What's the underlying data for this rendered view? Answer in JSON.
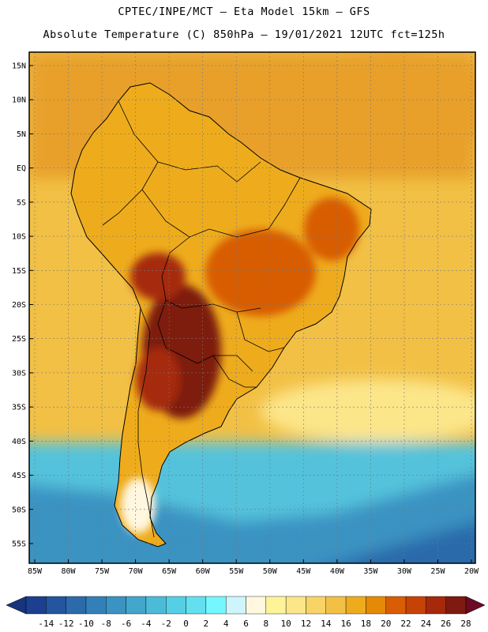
{
  "title_line1": "CPTEC/INPE/MCT –  Eta Model 15km – GFS",
  "title_line2": "Absolute Temperature (C) 850hPa – 19/01/2021 12UTC fct=125h",
  "lat_labels": [
    "15N",
    "10N",
    "5N",
    "EQ",
    "5S",
    "10S",
    "15S",
    "20S",
    "25S",
    "30S",
    "35S",
    "40S",
    "45S",
    "50S",
    "55S"
  ],
  "lat_values": [
    15,
    10,
    5,
    0,
    -5,
    -10,
    -15,
    -20,
    -25,
    -30,
    -35,
    -40,
    -45,
    -50,
    -55
  ],
  "lon_labels": [
    "85W",
    "80W",
    "75W",
    "70W",
    "65W",
    "60W",
    "55W",
    "50W",
    "45W",
    "40W",
    "35W",
    "30W",
    "25W",
    "20W"
  ],
  "lon_values": [
    -85,
    -80,
    -75,
    -70,
    -65,
    -60,
    -55,
    -50,
    -45,
    -40,
    -35,
    -30,
    -25,
    -20
  ],
  "colorbar": {
    "labels": [
      "-14",
      "-12",
      "-10",
      "-8",
      "-6",
      "-4",
      "-2",
      "0",
      "2",
      "4",
      "6",
      "8",
      "10",
      "12",
      "14",
      "16",
      "18",
      "20",
      "22",
      "24",
      "26",
      "28"
    ],
    "colors": [
      "#1c3f8f",
      "#24559e",
      "#2c6aab",
      "#3380b8",
      "#3a93c2",
      "#42a6cd",
      "#4bbbd8",
      "#55cfe3",
      "#63e0ef",
      "#75f7ff",
      "#cdf5fb",
      "#fff7df",
      "#fff399",
      "#fce68a",
      "#f8d466",
      "#f2c045",
      "#eeac1d",
      "#e58a06",
      "#d85d04",
      "#c64205",
      "#a6290c",
      "#7e1a10"
    ],
    "under_color": "#17347c",
    "over_color": "#6a0a24"
  },
  "field_colors": {
    "ocean_north": "#e8a02a",
    "ocean_mid": "#f2c045",
    "ocean_south_warm": "#fce68a",
    "ocean_cold": "#55c2dc",
    "ocean_colder": "#3a93c2",
    "ocean_coldest": "#2c6aab",
    "land_base": "#eeac1d",
    "land_warm": "#d85d04",
    "land_hot": "#a6290c",
    "land_hottest": "#7e1a10",
    "land_cool": "#fff7df",
    "coast": "#000000"
  }
}
